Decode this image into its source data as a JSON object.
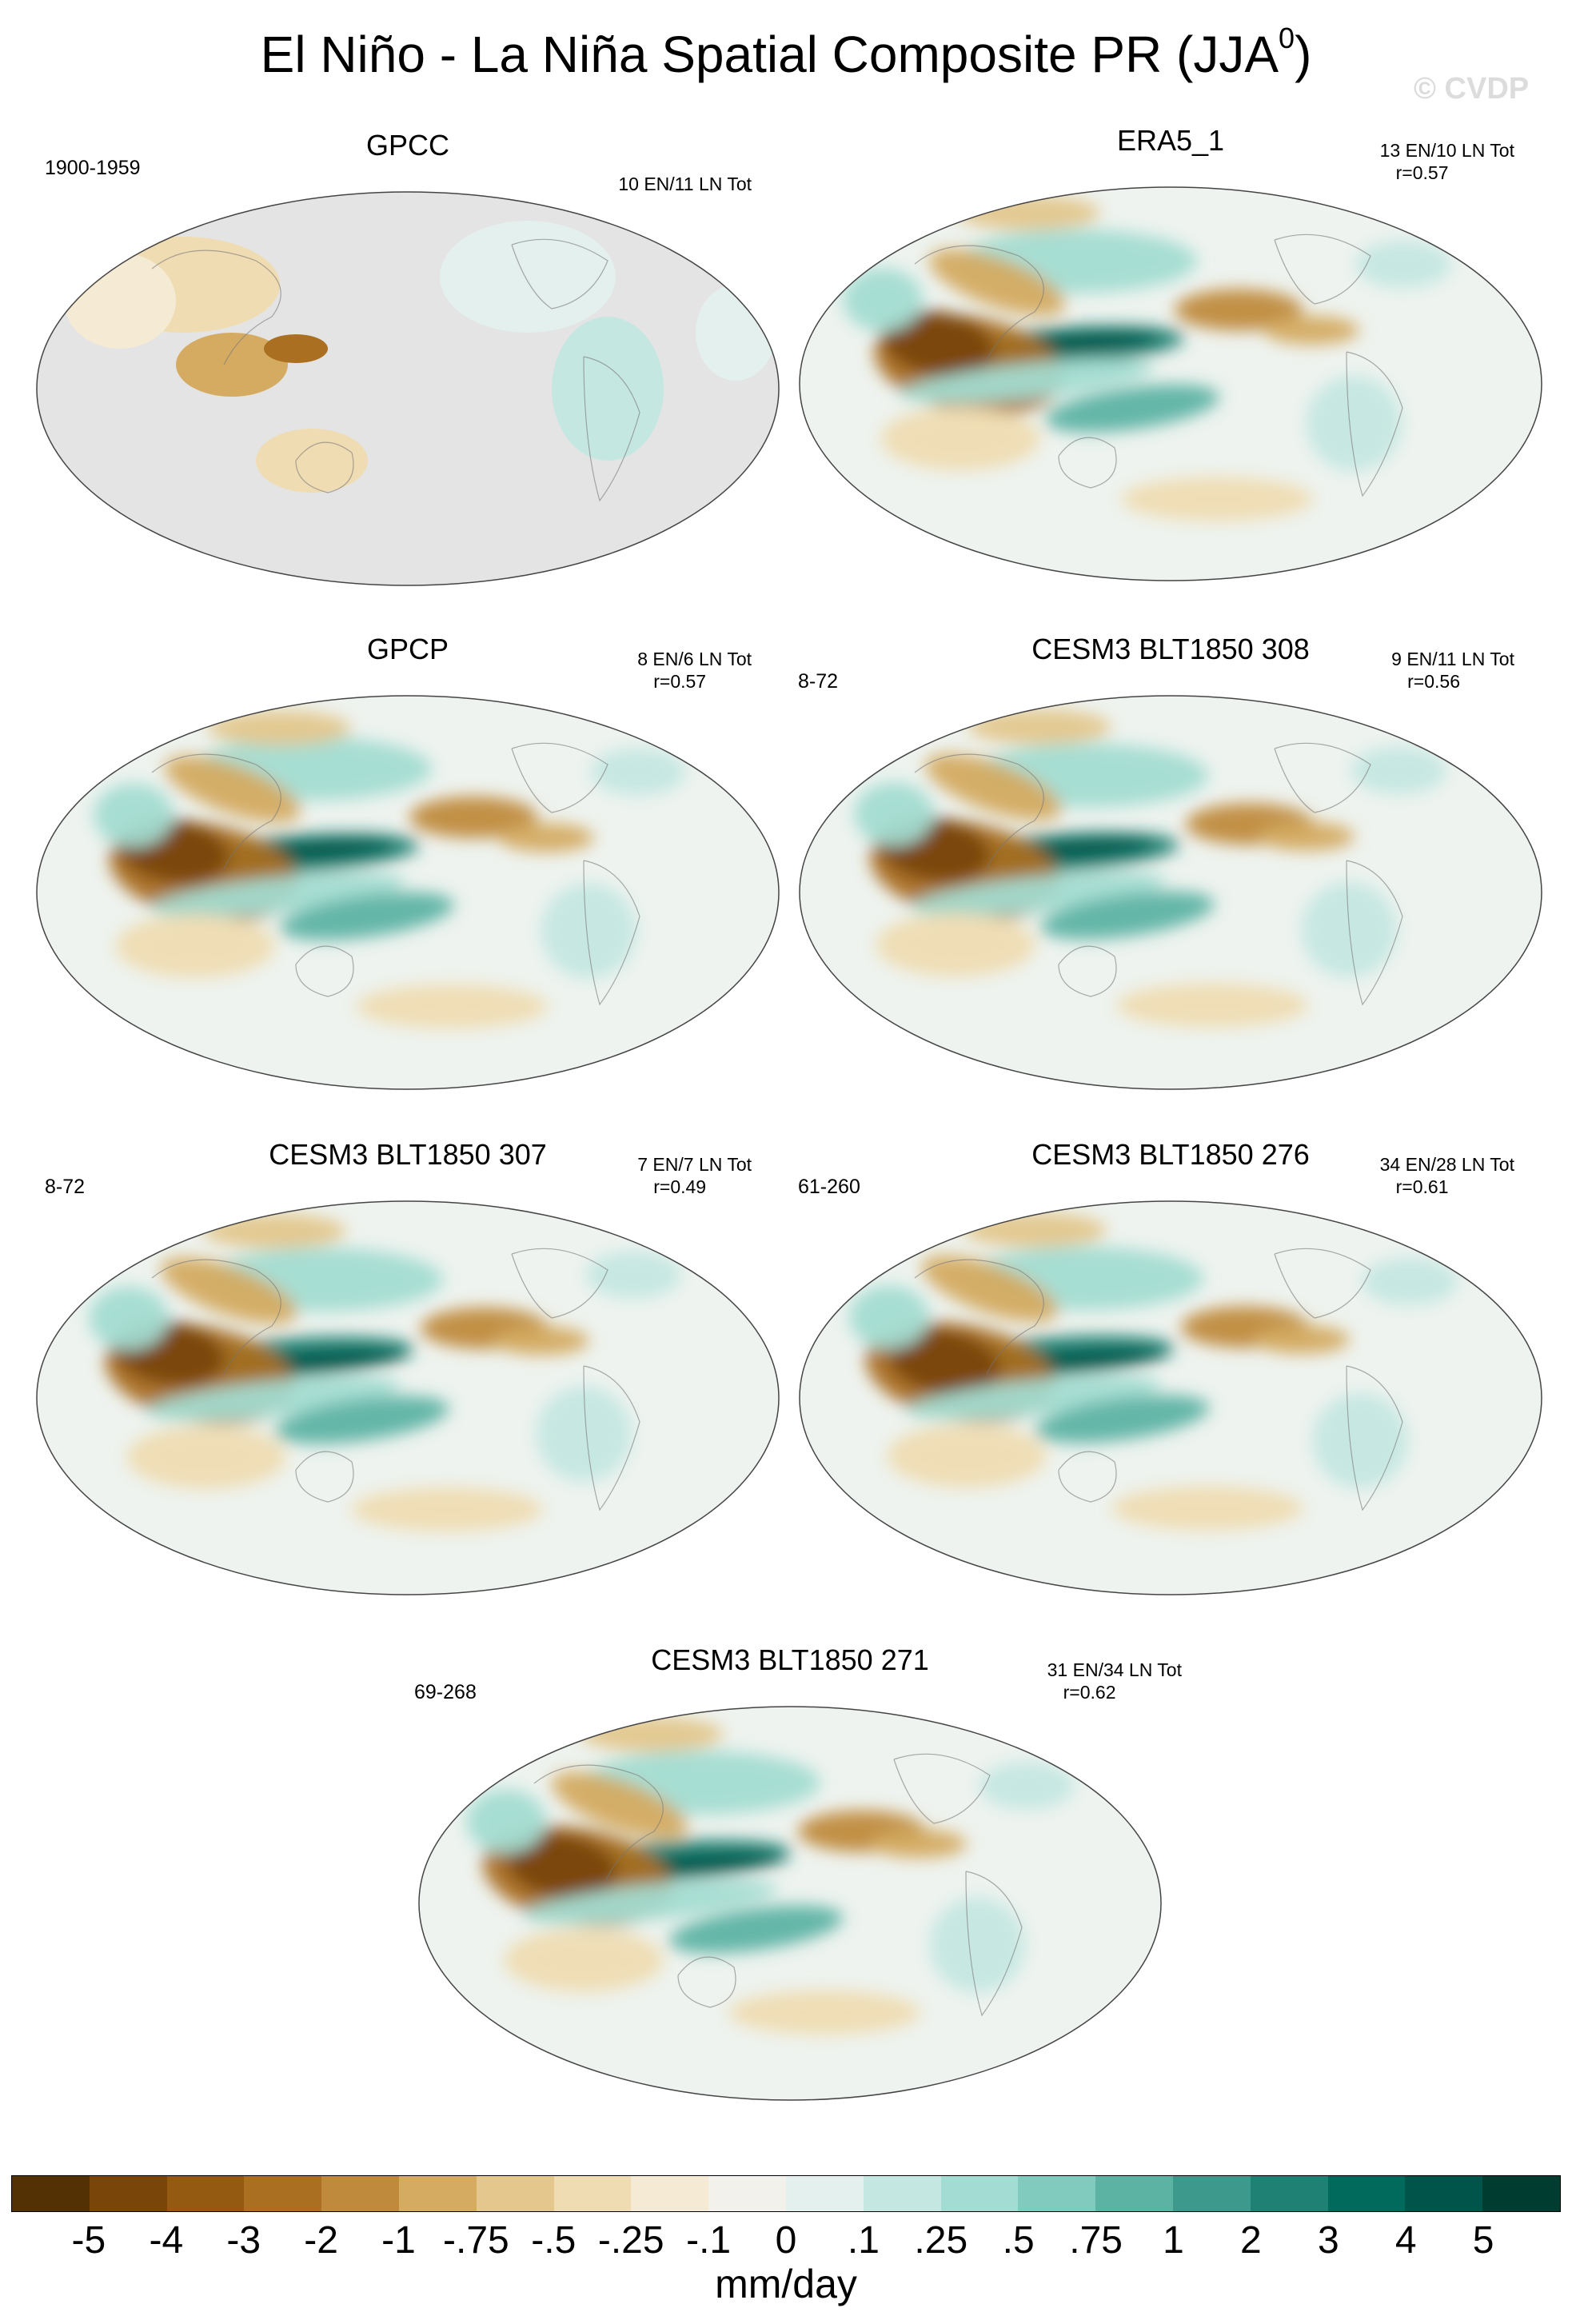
{
  "title_main": "El Niño - La Niña Spatial Composite PR (JJA",
  "title_sup": "0",
  "title_close": ")",
  "watermark": "© CVDP",
  "panels": [
    {
      "name": "GPCC",
      "years": "1900-1959",
      "stats": "10 EN/11 LN Tot",
      "r": "",
      "land_only": true
    },
    {
      "name": "ERA5_1",
      "years": "",
      "stats": "13 EN/10 LN Tot",
      "r": "r=0.57",
      "land_only": false
    },
    {
      "name": "GPCP",
      "years": "",
      "stats": "8 EN/6 LN Tot",
      "r": "r=0.57",
      "land_only": false
    },
    {
      "name": "CESM3 BLT1850 308",
      "years": "8-72",
      "stats": "9 EN/11 LN Tot",
      "r": "r=0.56",
      "land_only": false
    },
    {
      "name": "CESM3 BLT1850 307",
      "years": "8-72",
      "stats": "7 EN/7 LN Tot",
      "r": "r=0.49",
      "land_only": false
    },
    {
      "name": "CESM3 BLT1850 276",
      "years": "61-260",
      "stats": "34 EN/28 LN Tot",
      "r": "r=0.61",
      "land_only": false
    },
    {
      "name": "CESM3 BLT1850 271",
      "years": "69-268",
      "stats": "31 EN/34 LN Tot",
      "r": "r=0.62",
      "land_only": false
    }
  ],
  "colorbar": {
    "labels": [
      "-5",
      "-4",
      "-3",
      "-2",
      "-1",
      "-.75",
      "-.5",
      "-.25",
      "-.1",
      "0",
      ".1",
      ".25",
      ".5",
      ".75",
      "1",
      "2",
      "3",
      "4",
      "5"
    ],
    "colors": [
      "#543005",
      "#7a4509",
      "#955a11",
      "#aa6f21",
      "#bf8a3c",
      "#d4ab61",
      "#e3c78c",
      "#efdcb2",
      "#f5ead3",
      "#f3f1ec",
      "#e3f0ee",
      "#c5e7e1",
      "#a3dcd2",
      "#80cbbd",
      "#5cb3a4",
      "#3c998b",
      "#1f8173",
      "#026a5c",
      "#01544a",
      "#003c30"
    ],
    "units": "mm/day"
  },
  "legend_color_dry": "#955a11",
  "legend_color_wet": "#026a5c",
  "land_mask_color": "#e4e4e4"
}
